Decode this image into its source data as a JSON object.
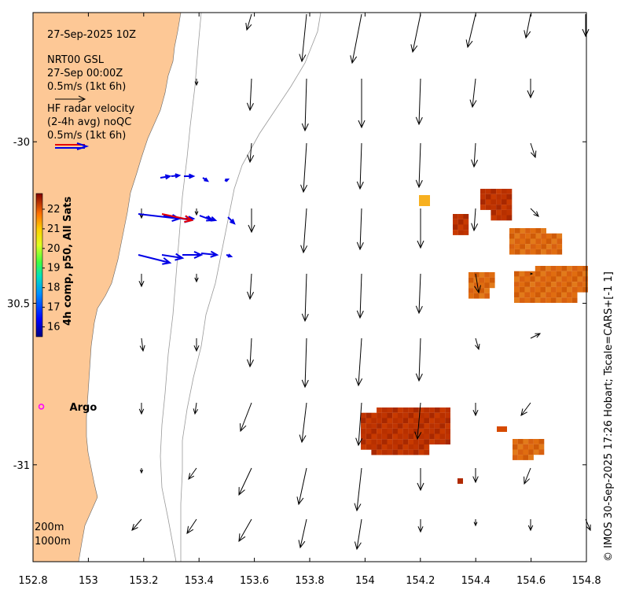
{
  "title": "27-Sep-2025 10Z",
  "model": {
    "line1": "NRT00 GSL",
    "line2": "27-Sep 00:00Z",
    "scale_text": "0.5m/s (1kt 6h)"
  },
  "radar": {
    "line1": "HF radar velocity",
    "line2": "(2-4h avg) noQC",
    "scale_text": "0.5m/s (1kt 6h)"
  },
  "colorbar": {
    "label": "4h comp, p50, All Sats",
    "ticks": [
      "16",
      "17",
      "18",
      "19",
      "20",
      "21",
      "22"
    ],
    "range": [
      15.5,
      22.8
    ]
  },
  "argo": {
    "label": "Argo",
    "lon": 152.83,
    "lat": -30.82
  },
  "contours": {
    "c1": "200m",
    "c2": "1000m"
  },
  "credit": "© IMOS 30-Sep-2025 17:26 Hobart; Tscale=CARS+[-1 1]",
  "axes": {
    "xlim": [
      152.8,
      154.8
    ],
    "ylim": [
      -31.3,
      -29.6
    ],
    "xticks": [
      "152.8",
      "153",
      "153.2",
      "153.4",
      "153.6",
      "153.8",
      "154",
      "154.2",
      "154.4",
      "154.6",
      "154.8"
    ],
    "yticks": [
      {
        "value": -30,
        "label": "-30"
      },
      {
        "value": -30.5,
        "label": "30.5"
      },
      {
        "value": -31,
        "label": "-31"
      }
    ]
  },
  "colors": {
    "land": "#fdc896",
    "model_arrow": "#000000",
    "radar_arrow": "#0000e6",
    "radar_arrow_red": "#e60000",
    "argo": "#ff00ff",
    "sst_low": "#bf3f00",
    "sst_high": "#e0700a"
  }
}
